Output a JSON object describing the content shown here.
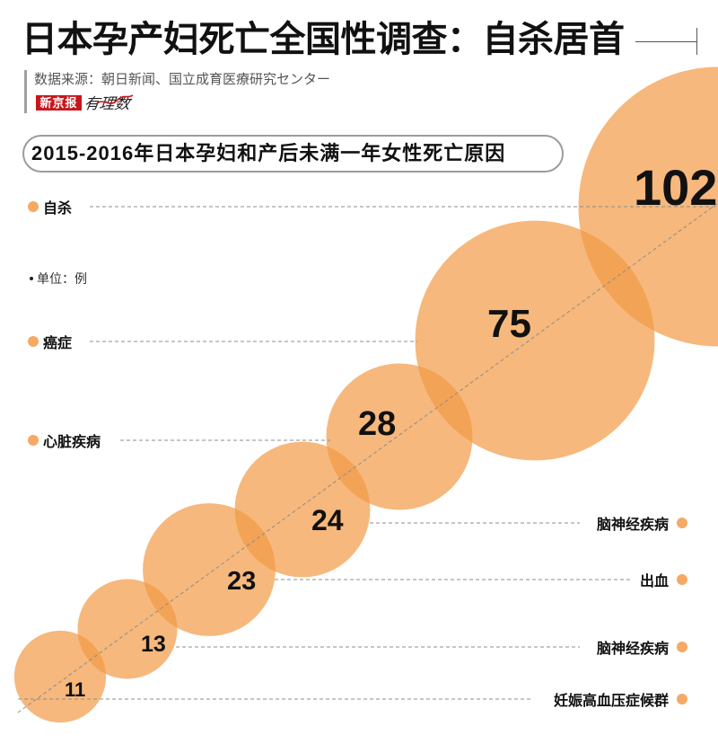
{
  "header": {
    "title": "日本孕产妇死亡全国性调查：自杀居首",
    "source": "数据来源：朝日新闻、国立成育医療研究センター",
    "logo_text": "新京报",
    "logo_script_text": "有理数"
  },
  "colors": {
    "bubble": "#F29A45",
    "label_dot": "#F5A965",
    "logo_red": "#C9161D",
    "guide_line": "#8C8C8C"
  },
  "chart_data": {
    "type": "scatter",
    "title": "2015-2016年日本孕妇和产后未满一年女性死亡原因",
    "unit": "单位：例",
    "categories": [
      "自杀",
      "癌症",
      "心脏疾病",
      "脑神经疾病",
      "出血",
      "脑神经疾病",
      "妊娠高血压症候群"
    ],
    "values": [
      102,
      75,
      28,
      24,
      23,
      13,
      11
    ]
  }
}
